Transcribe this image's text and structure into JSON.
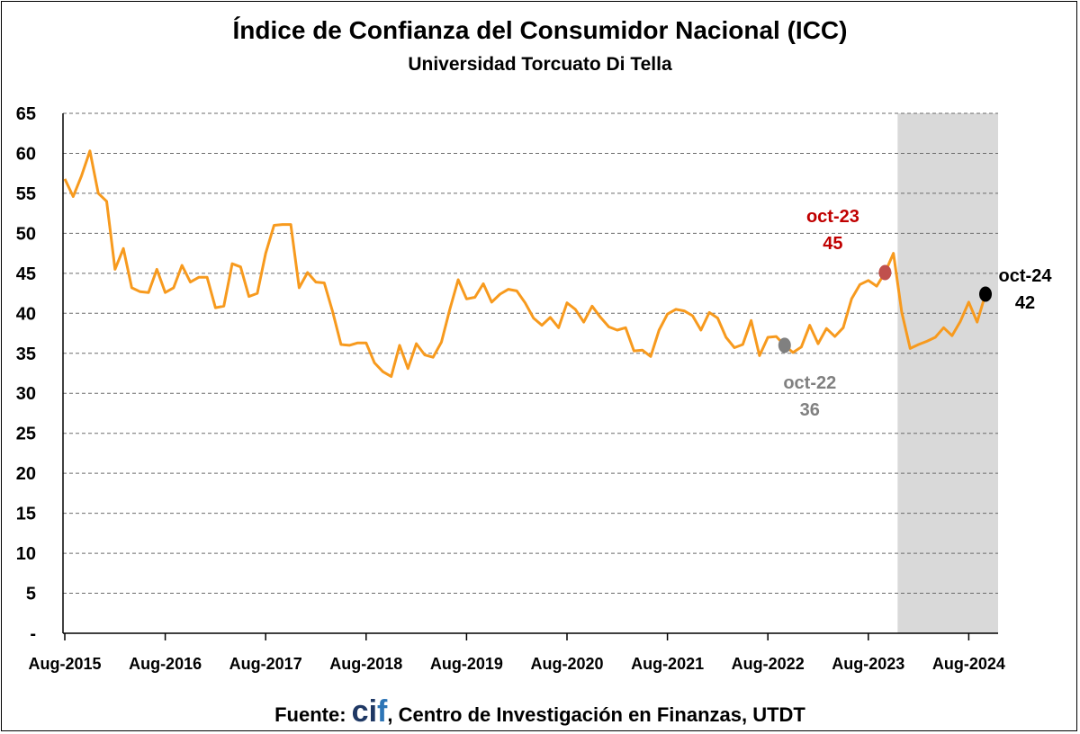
{
  "header": {
    "title": "Índice de Confianza del Consumidor Nacional (ICC)",
    "subtitle": "Universidad Torcuato Di Tella"
  },
  "footer": {
    "prefix": "Fuente: ",
    "brand_ci": "ci",
    "brand_f": "f",
    "suffix": ", Centro de Investigación en Finanzas, UTDT"
  },
  "colors": {
    "line": "#f79a1e",
    "highlight_band": "#d9d9d9",
    "oct22": "#808080",
    "oct23": "#c00000",
    "oct23_marker": "#c0504d",
    "oct24": "#000000"
  },
  "chart_data": {
    "type": "line",
    "title": "Índice de Confianza del Consumidor Nacional (ICC)",
    "subtitle": "Universidad Torcuato Di Tella",
    "ylim": [
      0,
      65
    ],
    "y_ticks": [
      "-",
      "5",
      "10",
      "15",
      "20",
      "25",
      "30",
      "35",
      "40",
      "45",
      "50",
      "55",
      "60",
      "65"
    ],
    "x_ticks": [
      "Aug-2015",
      "Aug-2016",
      "Aug-2017",
      "Aug-2018",
      "Aug-2019",
      "Aug-2020",
      "Aug-2021",
      "Aug-2022",
      "Aug-2023",
      "Aug-2024"
    ],
    "grid": "horizontal dashed",
    "shaded_period": {
      "from": "Dec-2023",
      "to": "Oct-2024"
    },
    "series": [
      {
        "start": "Aug-2015",
        "frequency": "monthly",
        "values": [
          56.8,
          54.6,
          57.2,
          60.3,
          55.0,
          54.0,
          45.5,
          48.1,
          43.2,
          42.7,
          42.6,
          45.5,
          42.6,
          43.2,
          46.0,
          43.9,
          44.5,
          44.5,
          40.7,
          40.9,
          46.2,
          45.8,
          42.1,
          42.5,
          47.5,
          51.0,
          51.1,
          51.1,
          43.2,
          45.1,
          43.9,
          43.8,
          40.2,
          36.1,
          36.0,
          36.3,
          36.3,
          33.8,
          32.7,
          32.1,
          36.0,
          33.1,
          36.2,
          34.8,
          34.5,
          36.4,
          40.5,
          44.2,
          41.8,
          42.0,
          43.7,
          41.4,
          42.4,
          43.0,
          42.8,
          41.3,
          39.4,
          38.5,
          39.5,
          38.2,
          41.3,
          40.5,
          38.9,
          40.9,
          39.5,
          38.3,
          37.9,
          38.2,
          35.3,
          35.4,
          34.6,
          37.9,
          39.9,
          40.5,
          40.3,
          39.7,
          37.9,
          40.1,
          39.4,
          37.0,
          35.7,
          36.1,
          39.1,
          34.7,
          37.0,
          37.1,
          36.0,
          35.1,
          35.8,
          38.5,
          36.2,
          38.1,
          37.1,
          38.2,
          41.8,
          43.6,
          44.1,
          43.4,
          45.1,
          47.5,
          40.1,
          35.6,
          36.1,
          36.5,
          37.0,
          38.2,
          37.2,
          39.0,
          41.4,
          38.9,
          42.4
        ]
      }
    ],
    "annotations": [
      {
        "label": "oct-22",
        "value": "36",
        "x": "Oct-2022",
        "y": 36.0
      },
      {
        "label": "oct-23",
        "value": "45",
        "x": "Oct-2023",
        "y": 45.1
      },
      {
        "label": "oct-24",
        "value": "42",
        "x": "Oct-2024",
        "y": 42.4
      }
    ]
  }
}
